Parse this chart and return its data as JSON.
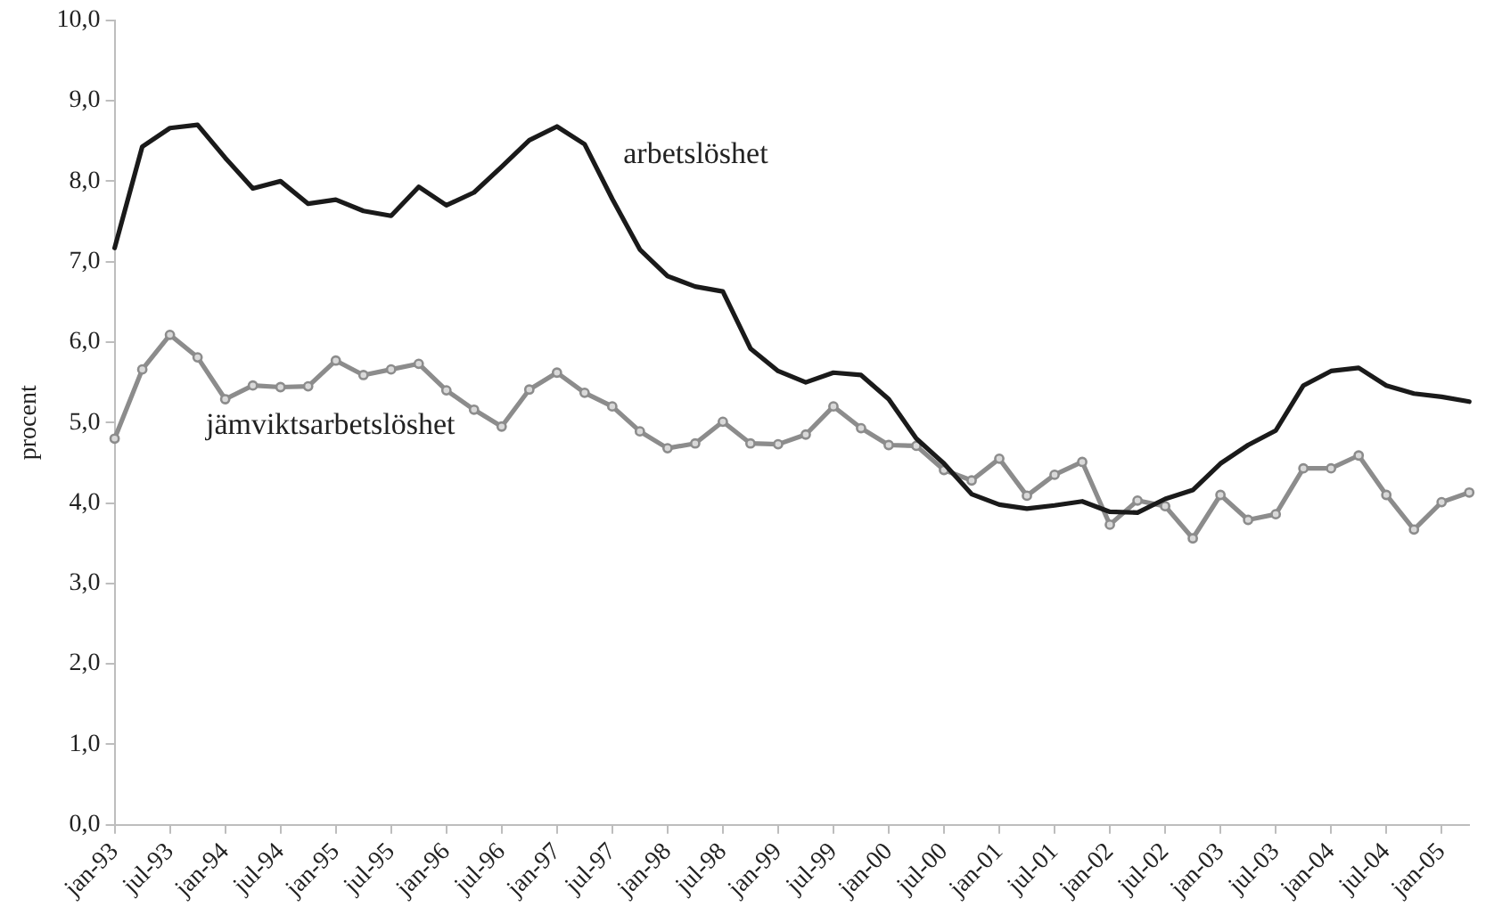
{
  "chart_data": {
    "type": "line",
    "ylabel": "procent",
    "categories": [
      "jan-93",
      null,
      "jul-93",
      null,
      "jan-94",
      null,
      "jul-94",
      null,
      "jan-95",
      null,
      "jul-95",
      null,
      "jan-96",
      null,
      "jul-96",
      null,
      "jan-97",
      null,
      "jul-97",
      null,
      "jan-98",
      null,
      "jul-98",
      null,
      "jan-99",
      null,
      "jul-99",
      null,
      "jan-00",
      null,
      "jul-00",
      null,
      "jan-01",
      null,
      "jul-01",
      null,
      "jan-02",
      null,
      "jul-02",
      null,
      "jan-03",
      null,
      "jul-03",
      null,
      "jan-04",
      null,
      "jul-04",
      null,
      "jan-05",
      null
    ],
    "series": [
      {
        "name": "arbetslöshet",
        "color": "#1a1a1a",
        "marker": "none",
        "values": [
          7.17,
          8.43,
          8.66,
          8.7,
          8.29,
          7.91,
          8.0,
          7.72,
          7.77,
          7.63,
          7.57,
          7.93,
          7.7,
          7.86,
          8.18,
          8.51,
          8.68,
          8.46,
          7.78,
          7.15,
          6.82,
          6.69,
          6.63,
          5.92,
          5.64,
          5.5,
          5.62,
          5.59,
          5.29,
          4.8,
          4.49,
          4.11,
          3.98,
          3.93,
          3.97,
          4.02,
          3.89,
          3.88,
          4.05,
          4.16,
          4.49,
          4.72,
          4.9,
          5.46,
          5.64,
          5.68,
          5.46,
          5.36,
          5.32,
          5.26
        ]
      },
      {
        "name": "jämviktsarbetslöshet",
        "color": "#8c8c8c",
        "marker": "circle",
        "values": [
          4.8,
          5.66,
          6.09,
          5.81,
          5.29,
          5.46,
          5.44,
          5.45,
          5.77,
          5.59,
          5.66,
          5.73,
          5.4,
          5.16,
          4.95,
          5.41,
          5.62,
          5.37,
          5.2,
          4.89,
          4.68,
          4.74,
          5.01,
          4.74,
          4.73,
          4.85,
          5.2,
          4.93,
          4.72,
          4.71,
          4.41,
          4.28,
          4.55,
          4.09,
          4.35,
          4.51,
          3.73,
          4.03,
          3.96,
          3.56,
          4.1,
          3.79,
          3.86,
          4.43,
          4.43,
          4.59,
          4.1,
          3.67,
          4.01,
          4.13
        ]
      }
    ],
    "ylim": [
      0,
      10
    ],
    "yticks": [
      {
        "value": 0,
        "label": "0,0"
      },
      {
        "value": 1,
        "label": "1,0"
      },
      {
        "value": 2,
        "label": "2,0"
      },
      {
        "value": 3,
        "label": "3,0"
      },
      {
        "value": 4,
        "label": "4,0"
      },
      {
        "value": 5,
        "label": "5,0"
      },
      {
        "value": 6,
        "label": "6,0"
      },
      {
        "value": 7,
        "label": "7,0"
      },
      {
        "value": 8,
        "label": "8,0"
      },
      {
        "value": 9,
        "label": "9,0"
      },
      {
        "value": 10,
        "label": "10,0"
      }
    ],
    "grid": false,
    "legend": false,
    "line_style": "solid"
  }
}
